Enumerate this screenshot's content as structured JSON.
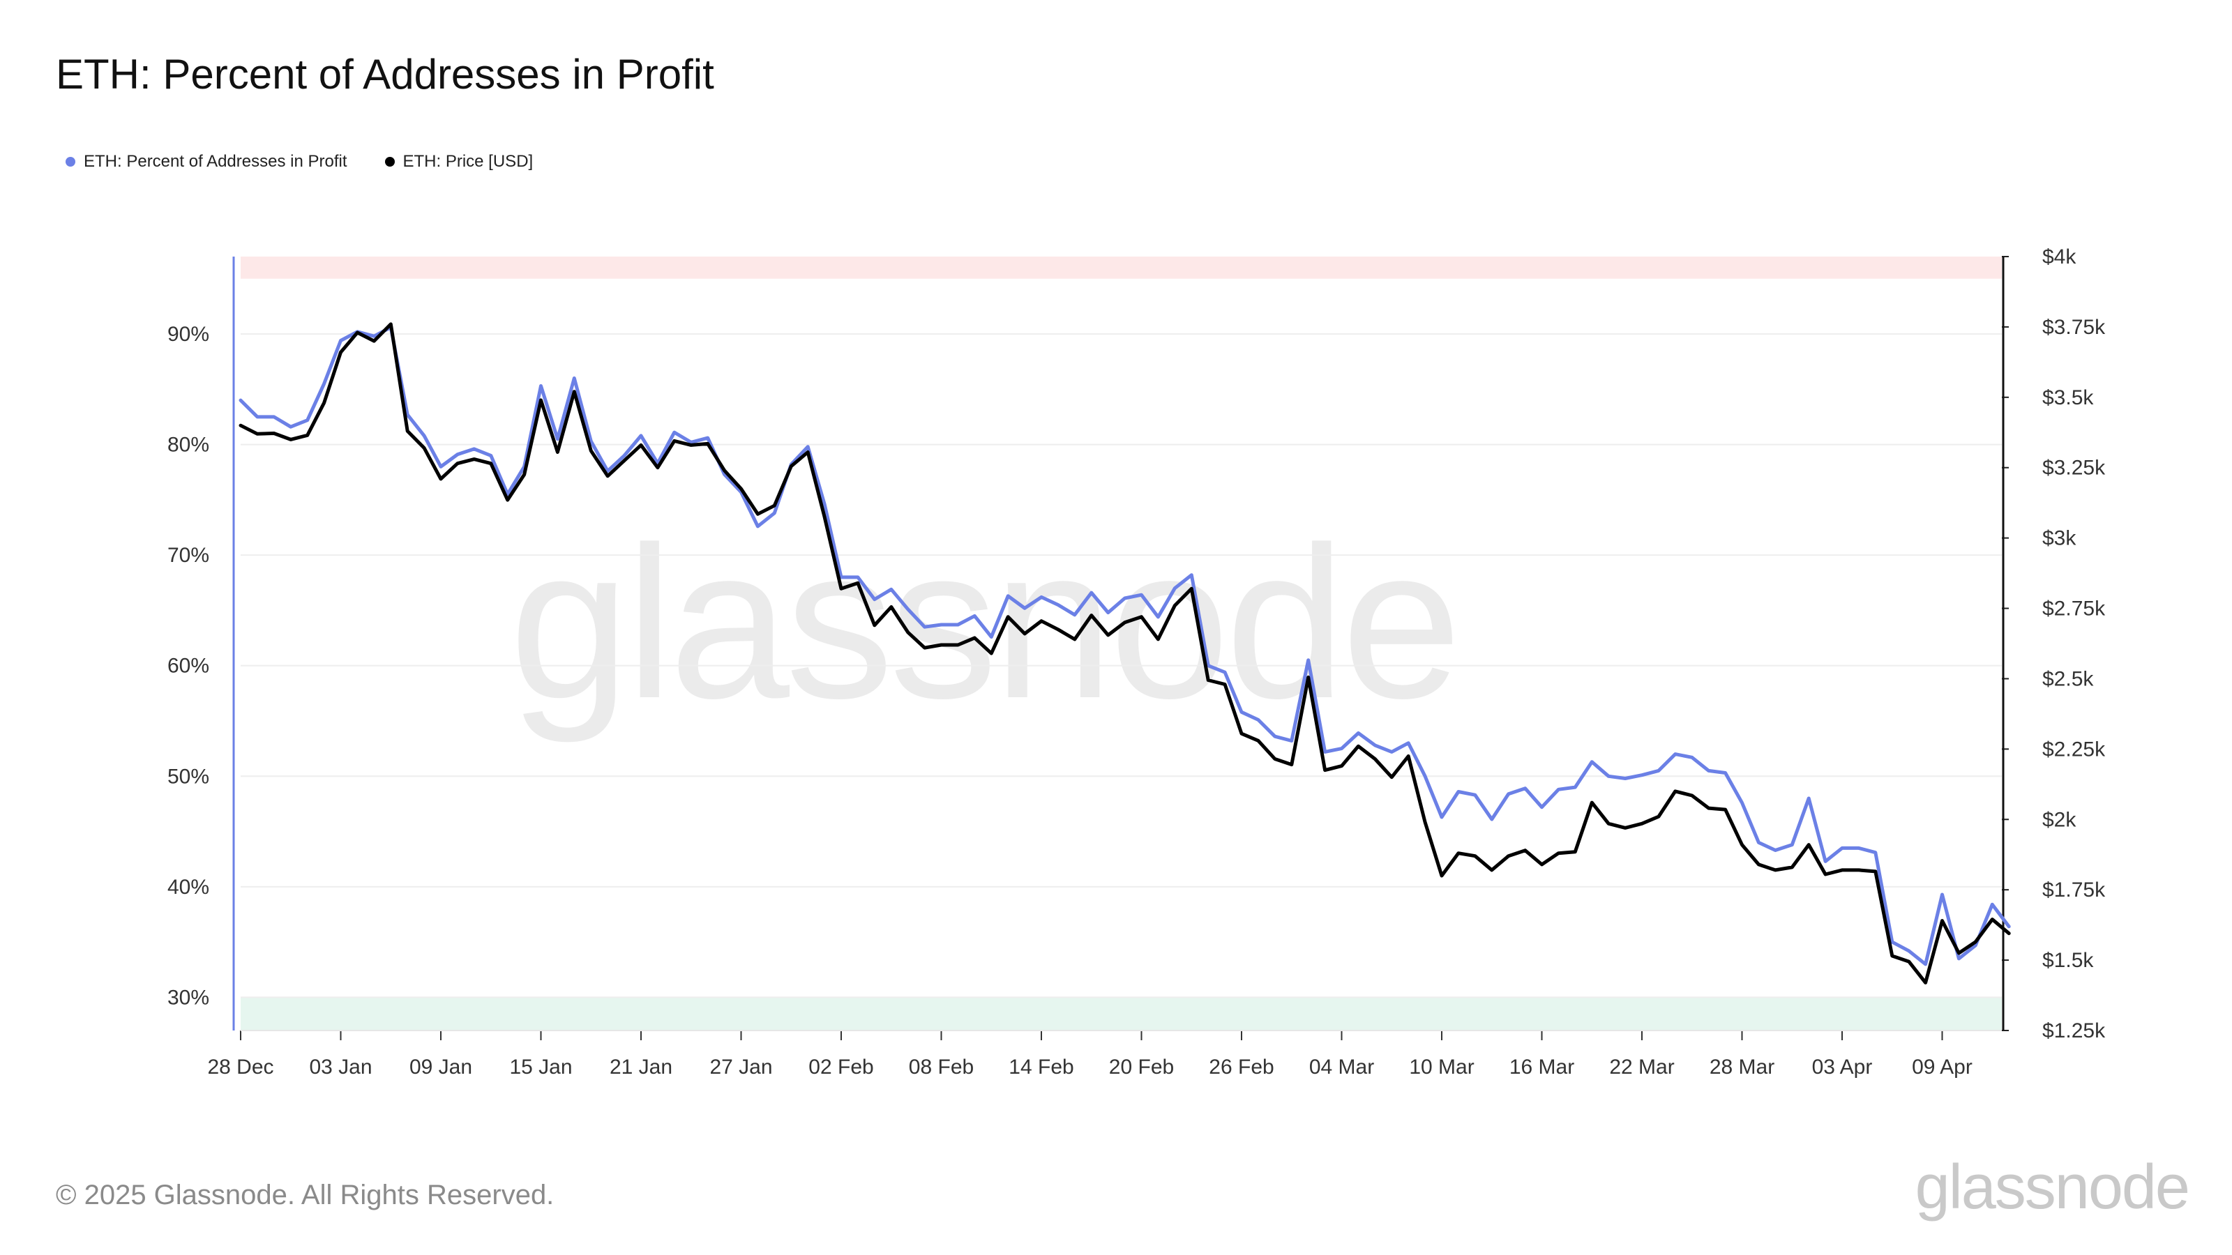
{
  "title": "ETH: Percent of Addresses in Profit",
  "legend": [
    {
      "label": "ETH: Percent of Addresses in Profit",
      "color": "#6b80e6"
    },
    {
      "label": "ETH: Price [USD]",
      "color": "#000000"
    }
  ],
  "footer": "© 2025 Glassnode. All Rights Reserved.",
  "logo_text": "glassnode",
  "watermark_text": "glassnode",
  "chart_data": {
    "type": "line",
    "title": "ETH: Percent of Addresses in Profit",
    "x_start": "2024-12-28",
    "x_tick_labels": [
      "28 Dec",
      "03 Jan",
      "09 Jan",
      "15 Jan",
      "21 Jan",
      "27 Jan",
      "02 Feb",
      "08 Feb",
      "14 Feb",
      "20 Feb",
      "26 Feb",
      "04 Mar",
      "10 Mar",
      "16 Mar",
      "22 Mar",
      "28 Mar",
      "03 Apr",
      "09 Apr"
    ],
    "y_left": {
      "ticks": [
        30,
        40,
        50,
        60,
        70,
        80,
        90
      ],
      "tick_labels": [
        "30%",
        "40%",
        "50%",
        "60%",
        "70%",
        "80%",
        "90%"
      ],
      "range": [
        27,
        97
      ]
    },
    "y_right": {
      "ticks": [
        1250,
        1500,
        1750,
        2000,
        2250,
        2500,
        2750,
        3000,
        3250,
        3500,
        3750,
        4000
      ],
      "tick_labels": [
        "$1.25k",
        "$1.5k",
        "$1.75k",
        "$2k",
        "$2.25k",
        "$2.5k",
        "$2.75k",
        "$3k",
        "$3.25k",
        "$3.5k",
        "$3.75k",
        "$4k"
      ],
      "range": [
        1250,
        4000
      ]
    },
    "bands": [
      {
        "from": 95,
        "to": 97,
        "color": "#fde8e8"
      },
      {
        "from": 27,
        "to": 30,
        "color": "#e6f6ef"
      }
    ],
    "grid": true,
    "legend_position": "top-left",
    "series": [
      {
        "name": "ETH: Percent of Addresses in Profit",
        "axis": "left",
        "color": "#6b80e6",
        "values": [
          84.0,
          82.5,
          82.5,
          81.6,
          82.2,
          85.5,
          89.4,
          90.2,
          89.8,
          90.6,
          82.7,
          80.8,
          78.0,
          79.1,
          79.6,
          79.0,
          75.5,
          78.0,
          85.3,
          80.5,
          86.0,
          80.3,
          77.6,
          79.0,
          80.8,
          78.3,
          81.1,
          80.2,
          80.6,
          77.3,
          75.7,
          72.6,
          73.8,
          78.2,
          79.8,
          74.6,
          68.0,
          68.0,
          66.0,
          66.9,
          65.1,
          63.5,
          63.7,
          63.7,
          64.5,
          62.6,
          66.3,
          65.2,
          66.2,
          65.5,
          64.6,
          66.6,
          64.8,
          66.1,
          66.4,
          64.4,
          67.0,
          68.2,
          60.0,
          59.4,
          55.8,
          55.1,
          53.6,
          53.2,
          60.5,
          52.2,
          52.5,
          53.9,
          52.8,
          52.2,
          53.0,
          50.0,
          46.3,
          48.6,
          48.3,
          46.1,
          48.4,
          48.9,
          47.2,
          48.8,
          49.0,
          51.3,
          50.0,
          49.8,
          50.1,
          50.5,
          52.0,
          51.7,
          50.5,
          50.3,
          47.6,
          44.0,
          43.3,
          43.8,
          48.0,
          42.3,
          43.5,
          43.5,
          43.1,
          35.0,
          34.2,
          33.0,
          39.3,
          33.5,
          34.7,
          38.4,
          36.4
        ]
      },
      {
        "name": "ETH: Price [USD]",
        "axis": "right",
        "color": "#000000",
        "values": [
          3400,
          3370,
          3372,
          3350,
          3365,
          3480,
          3660,
          3730,
          3700,
          3760,
          3380,
          3320,
          3210,
          3265,
          3280,
          3265,
          3135,
          3225,
          3490,
          3305,
          3520,
          3310,
          3220,
          3275,
          3330,
          3250,
          3345,
          3330,
          3335,
          3240,
          3175,
          3085,
          3115,
          3255,
          3305,
          3075,
          2820,
          2840,
          2690,
          2755,
          2665,
          2610,
          2620,
          2620,
          2645,
          2590,
          2720,
          2660,
          2705,
          2675,
          2640,
          2725,
          2655,
          2700,
          2720,
          2640,
          2760,
          2820,
          2495,
          2480,
          2305,
          2280,
          2215,
          2195,
          2505,
          2175,
          2190,
          2260,
          2215,
          2150,
          2225,
          1990,
          1800,
          1880,
          1870,
          1820,
          1870,
          1890,
          1840,
          1880,
          1885,
          2060,
          1985,
          1970,
          1985,
          2010,
          2100,
          2085,
          2040,
          2035,
          1910,
          1840,
          1820,
          1830,
          1910,
          1805,
          1820,
          1820,
          1815,
          1515,
          1495,
          1420,
          1640,
          1525,
          1565,
          1645,
          1595
        ]
      }
    ]
  }
}
